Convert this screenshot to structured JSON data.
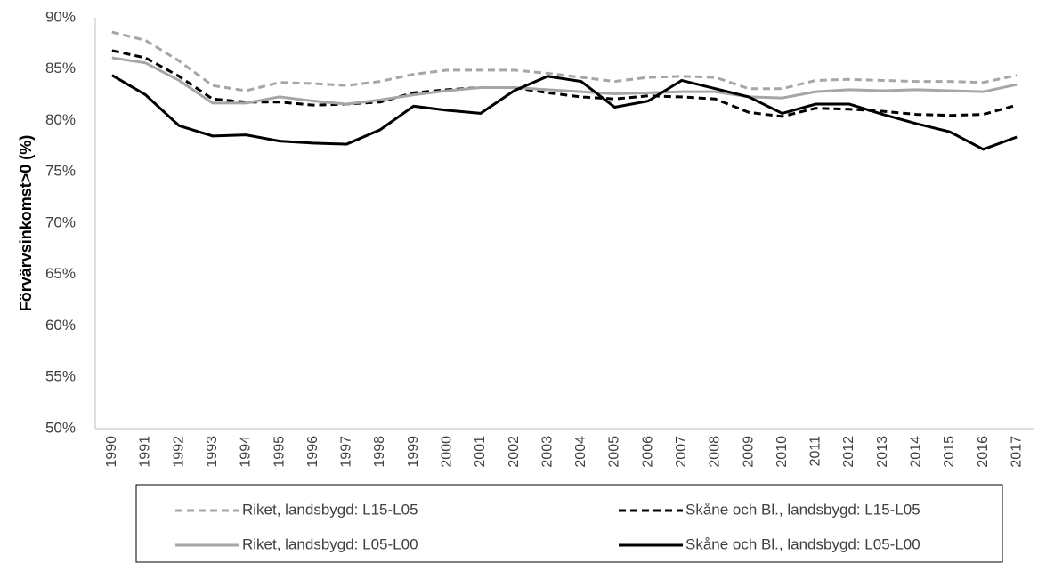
{
  "chart_data": {
    "type": "line",
    "y_label": "Förvärvsinkomst>0 (%)",
    "categories": [
      "1990",
      "1991",
      "1992",
      "1993",
      "1994",
      "1995",
      "1996",
      "1997",
      "1998",
      "1999",
      "2000",
      "2001",
      "2002",
      "2003",
      "2004",
      "2005",
      "2006",
      "2007",
      "2008",
      "2009",
      "2010",
      "2011",
      "2012",
      "2013",
      "2014",
      "2015",
      "2016",
      "2017"
    ],
    "series": [
      {
        "name": "Riket, landsbygd: L15-L05",
        "color": "#a6a6a6",
        "dash": true,
        "values": [
          88.6,
          87.8,
          85.8,
          83.4,
          82.9,
          83.7,
          83.6,
          83.4,
          83.8,
          84.5,
          84.9,
          84.9,
          84.9,
          84.6,
          84.2,
          83.8,
          84.2,
          84.3,
          84.2,
          83.1,
          83.1,
          83.9,
          84.0,
          83.9,
          83.8,
          83.8,
          83.7,
          84.4
        ]
      },
      {
        "name": "Skåne och Bl., landsbygd: L15-L05",
        "color": "#000000",
        "dash": true,
        "values": [
          86.8,
          86.1,
          84.3,
          82.1,
          81.8,
          81.8,
          81.5,
          81.6,
          81.8,
          82.7,
          83.0,
          83.2,
          83.2,
          82.7,
          82.3,
          82.1,
          82.4,
          82.3,
          82.1,
          80.8,
          80.4,
          81.2,
          81.1,
          80.9,
          80.6,
          80.5,
          80.6,
          81.5
        ]
      },
      {
        "name": "Riket, landsbygd: L05-L00",
        "color": "#a6a6a6",
        "dash": false,
        "values": [
          86.1,
          85.6,
          83.9,
          81.7,
          81.7,
          82.3,
          81.9,
          81.6,
          82.0,
          82.5,
          82.9,
          83.2,
          83.2,
          83.0,
          82.8,
          82.6,
          82.7,
          82.8,
          82.8,
          82.3,
          82.2,
          82.8,
          83.0,
          82.9,
          83.0,
          82.9,
          82.8,
          83.5
        ]
      },
      {
        "name": "Skåne och Bl., landsbygd: L05-L00",
        "color": "#000000",
        "dash": false,
        "values": [
          84.4,
          82.5,
          79.5,
          78.5,
          78.6,
          78.0,
          77.8,
          77.7,
          79.1,
          81.4,
          81.0,
          80.7,
          82.9,
          84.3,
          83.8,
          81.3,
          81.9,
          83.9,
          83.1,
          82.3,
          80.7,
          81.6,
          81.6,
          80.6,
          79.7,
          78.9,
          77.2,
          78.4
        ]
      }
    ],
    "ylim": [
      50,
      90
    ],
    "yticks": [
      {
        "value": 50,
        "label": "50%"
      },
      {
        "value": 55,
        "label": "55%"
      },
      {
        "value": 60,
        "label": "60%"
      },
      {
        "value": 65,
        "label": "65%"
      },
      {
        "value": 70,
        "label": "70%"
      },
      {
        "value": 75,
        "label": "75%"
      },
      {
        "value": 80,
        "label": "80%"
      },
      {
        "value": 85,
        "label": "85%"
      },
      {
        "value": 90,
        "label": "90%"
      }
    ],
    "grid": false,
    "legend": "bottom"
  }
}
